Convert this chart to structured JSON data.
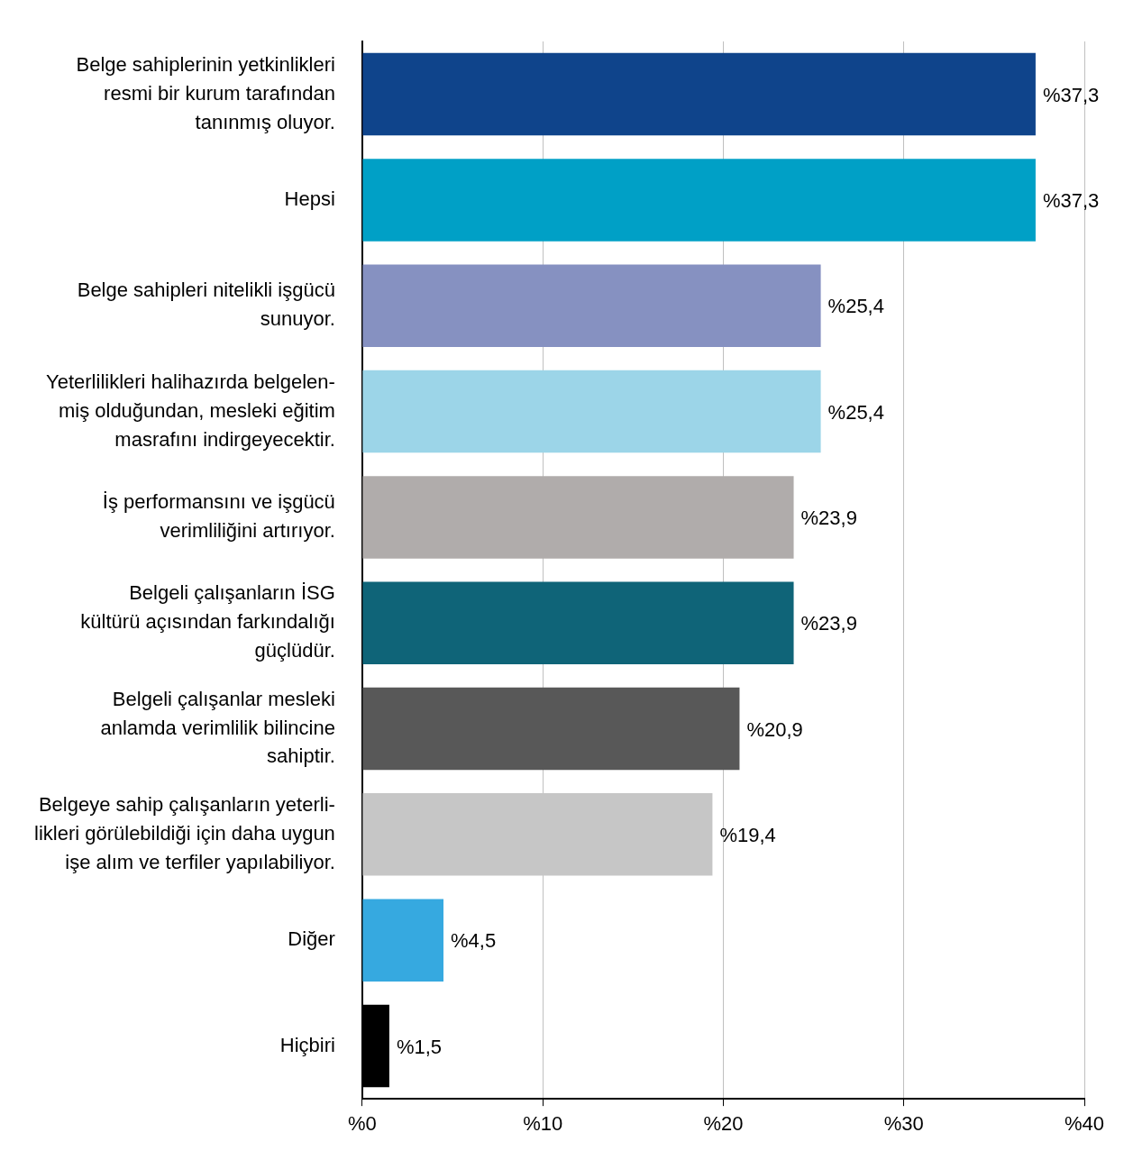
{
  "chart_data": {
    "type": "bar",
    "orientation": "horizontal",
    "categories": [
      "Belge sahiplerinin yetkinlikleri\nresmi bir kurum tarafından\ntanınmış oluyor.",
      "Hepsi",
      "Belge sahipleri nitelikli işgücü\nsunuyor.",
      "Yeterlilikleri halihazırda belgelen-\nmiş olduğundan, mesleki eğitim\nmasrafını indirgeyecektir.",
      "İş performansını ve işgücü\nverimliliğini artırıyor.",
      "Belgeli çalışanların İSG\nkültürü açısından farkındalığı\ngüçlüdür.",
      "Belgeli çalışanlar mesleki\nanlamda verimlilik bilincine\nsahiptir.",
      "Belgeye sahip çalışanların yeterli-\nlikleri görülebildiği için daha uygun\nişe alım ve terfiler yapılabiliyor.",
      "Diğer",
      "Hiçbiri"
    ],
    "values": [
      37.3,
      37.3,
      25.4,
      25.4,
      23.9,
      23.9,
      20.9,
      19.4,
      4.5,
      1.5
    ],
    "colors": [
      "#0f448b",
      "#00a0c6",
      "#8691c1",
      "#9cd5e8",
      "#b0acab",
      "#0f6478",
      "#585858",
      "#c6c6c6",
      "#36a9e0",
      "#000000"
    ],
    "value_labels": [
      "%37,3",
      "%37,3",
      "%25,4",
      "%25,4",
      "%23,9",
      "%23,9",
      "%20,9",
      "%19,4",
      "%4,5",
      "%1,5"
    ],
    "xlim": [
      0,
      40
    ],
    "xticks": [
      {
        "value": 0,
        "label": "%0"
      },
      {
        "value": 10,
        "label": "%10"
      },
      {
        "value": 20,
        "label": "%20"
      },
      {
        "value": 30,
        "label": "%30"
      },
      {
        "value": 40,
        "label": "%40"
      }
    ],
    "grid": "x",
    "legend": false
  }
}
